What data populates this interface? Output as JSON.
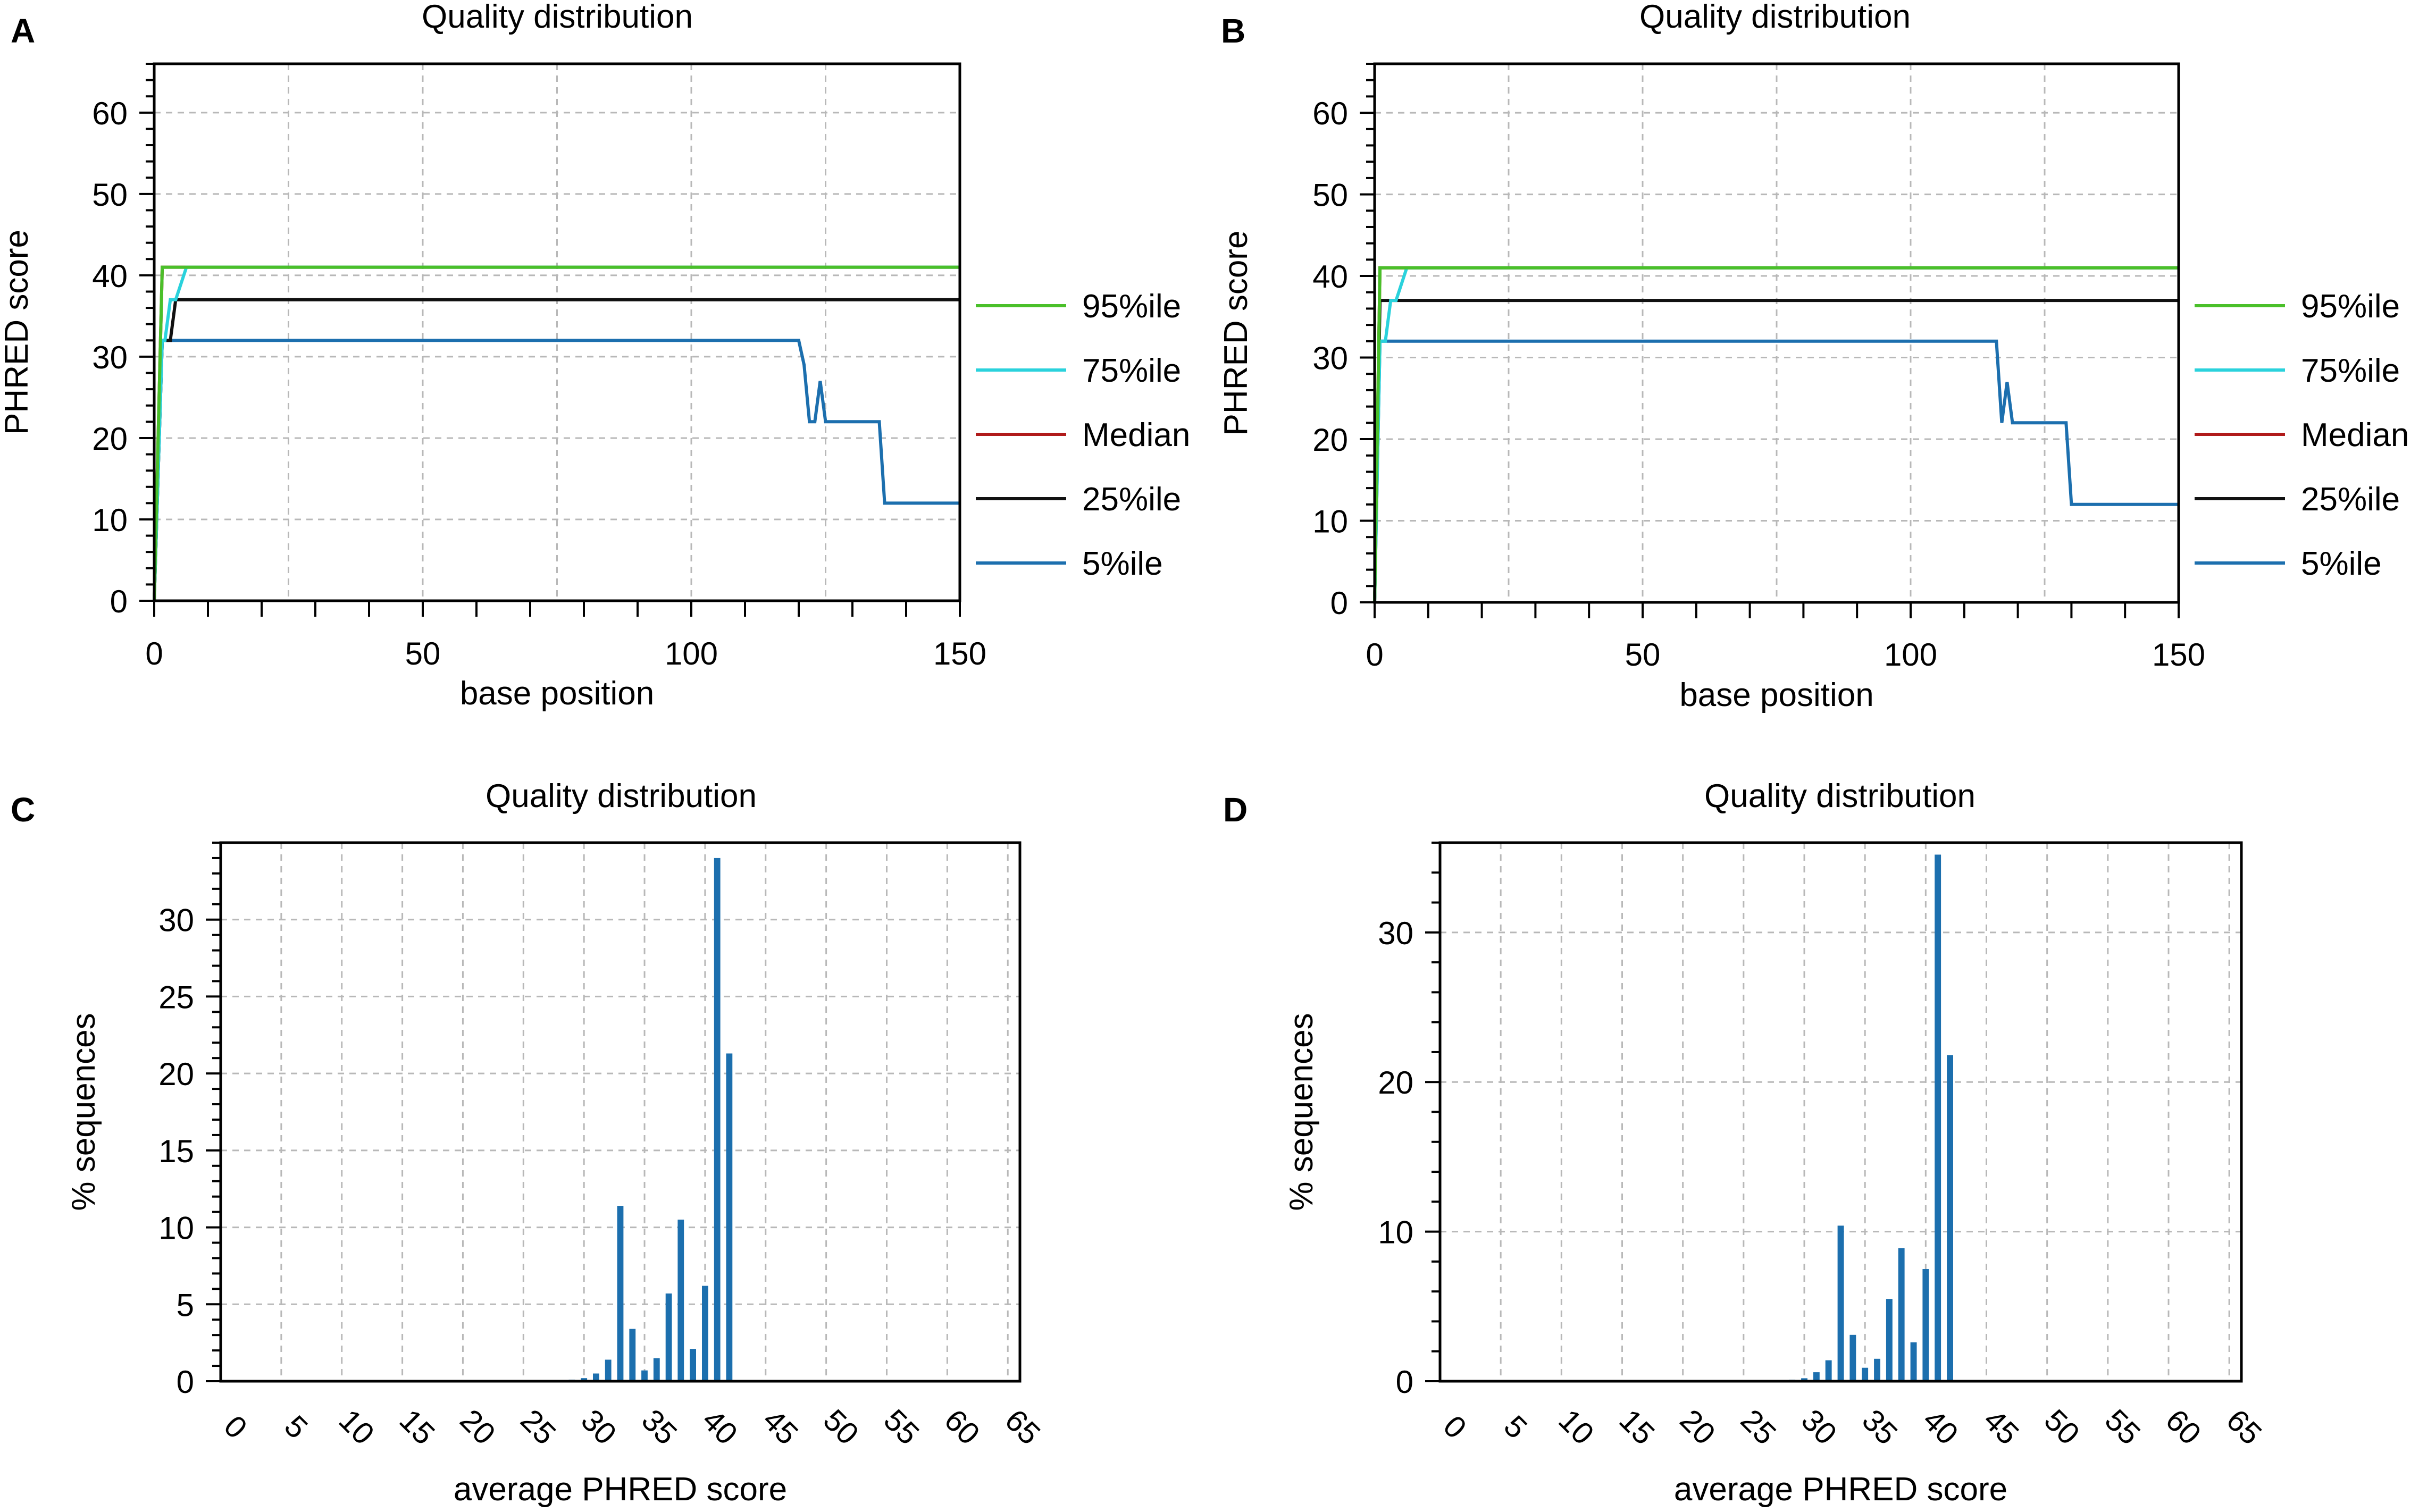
{
  "panels": [
    {
      "letter": "A",
      "title": "Quality distribution"
    },
    {
      "letter": "B",
      "title": "Quality distribution"
    },
    {
      "letter": "C",
      "title": "Quality distribution"
    },
    {
      "letter": "D",
      "title": "Quality distribution"
    }
  ],
  "colors": {
    "p95": "#4ac02a",
    "p75": "#2ad2dc",
    "median": "#b01a1a",
    "p25": "#111111",
    "p5": "#1c6fae",
    "bar": "#1c6fae",
    "grid": "#b8b8b8"
  },
  "chart_data": [
    {
      "panel": "A",
      "type": "line",
      "title": "Quality distribution",
      "xlabel": "base position",
      "ylabel": "PHRED score",
      "xlim": [
        0,
        150
      ],
      "ylim": [
        0,
        66
      ],
      "xticks": [
        0,
        50,
        100,
        150
      ],
      "yticks": [
        0,
        10,
        20,
        30,
        40,
        50,
        60
      ],
      "grid": true,
      "legend_position": "right",
      "series": [
        {
          "name": "95%ile",
          "color_key": "p95",
          "x": [
            0,
            1.5,
            150
          ],
          "y": [
            0,
            41,
            41
          ]
        },
        {
          "name": "75%ile",
          "color_key": "p75",
          "x": [
            0,
            1.5,
            2,
            3,
            4,
            5,
            6,
            150
          ],
          "y": [
            0,
            32,
            32,
            37,
            37,
            39,
            41,
            41
          ]
        },
        {
          "name": "Median",
          "color_key": "median",
          "x": [
            0,
            1.5,
            150
          ],
          "y": [
            0,
            41,
            41
          ]
        },
        {
          "name": "25%ile",
          "color_key": "p25",
          "x": [
            0,
            1.5,
            3,
            4,
            150
          ],
          "y": [
            0,
            32,
            32,
            37,
            37
          ]
        },
        {
          "name": "5%ile",
          "color_key": "p5",
          "x": [
            0,
            1.5,
            120,
            121,
            122,
            123,
            124,
            125,
            126,
            135,
            136,
            150
          ],
          "y": [
            0,
            32,
            32,
            29,
            22,
            22,
            27,
            22,
            22,
            22,
            12,
            12
          ]
        }
      ]
    },
    {
      "panel": "B",
      "type": "line",
      "title": "Quality distribution",
      "xlabel": "base position",
      "ylabel": "PHRED score",
      "xlim": [
        0,
        150
      ],
      "ylim": [
        0,
        66
      ],
      "xticks": [
        0,
        50,
        100,
        150
      ],
      "yticks": [
        0,
        10,
        20,
        30,
        40,
        50,
        60
      ],
      "grid": true,
      "legend_position": "right",
      "series": [
        {
          "name": "95%ile",
          "color_key": "p95",
          "x": [
            0,
            1,
            150
          ],
          "y": [
            0,
            41,
            41
          ]
        },
        {
          "name": "75%ile",
          "color_key": "p75",
          "x": [
            0,
            1,
            2,
            3,
            4,
            5,
            6,
            150
          ],
          "y": [
            0,
            32,
            32,
            37,
            37,
            39,
            41,
            41
          ]
        },
        {
          "name": "Median",
          "color_key": "median",
          "x": [
            0,
            1,
            150
          ],
          "y": [
            0,
            41,
            41
          ]
        },
        {
          "name": "25%ile",
          "color_key": "p25",
          "x": [
            0,
            1,
            150
          ],
          "y": [
            0,
            37,
            37
          ]
        },
        {
          "name": "5%ile",
          "color_key": "p5",
          "x": [
            0,
            1,
            116,
            117,
            118,
            119,
            120,
            129,
            130,
            150
          ],
          "y": [
            0,
            32,
            32,
            22,
            27,
            22,
            22,
            22,
            12,
            12
          ]
        }
      ]
    },
    {
      "panel": "C",
      "type": "bar",
      "title": "Quality distribution",
      "xlabel": "average PHRED score",
      "ylabel": "% sequences",
      "xlim": [
        0,
        66
      ],
      "ylim": [
        0,
        35
      ],
      "xticks": [
        0,
        5,
        10,
        15,
        20,
        25,
        30,
        35,
        40,
        45,
        50,
        55,
        60,
        65
      ],
      "yticks": [
        0,
        5,
        10,
        15,
        20,
        25,
        30
      ],
      "grid": true,
      "x": [
        28,
        29,
        30,
        31,
        32,
        33,
        34,
        35,
        36,
        37,
        38,
        39,
        40,
        41,
        42
      ],
      "values": [
        0.05,
        0.1,
        0.2,
        0.5,
        1.4,
        11.4,
        3.4,
        0.7,
        1.5,
        5.7,
        10.5,
        2.1,
        6.2,
        34.0,
        21.3
      ]
    },
    {
      "panel": "D",
      "type": "bar",
      "title": "Quality distribution",
      "xlabel": "average PHRED score",
      "ylabel": "% sequences",
      "xlim": [
        0,
        66
      ],
      "ylim": [
        0,
        36
      ],
      "xticks": [
        0,
        5,
        10,
        15,
        20,
        25,
        30,
        35,
        40,
        45,
        50,
        55,
        60,
        65
      ],
      "yticks": [
        0,
        10,
        20,
        30
      ],
      "grid": true,
      "x": [
        29,
        30,
        31,
        32,
        33,
        34,
        35,
        36,
        37,
        38,
        39,
        40,
        41,
        42
      ],
      "values": [
        0.1,
        0.2,
        0.6,
        1.4,
        10.4,
        3.1,
        0.9,
        1.5,
        5.5,
        8.9,
        2.6,
        7.5,
        35.2,
        21.8
      ]
    }
  ]
}
